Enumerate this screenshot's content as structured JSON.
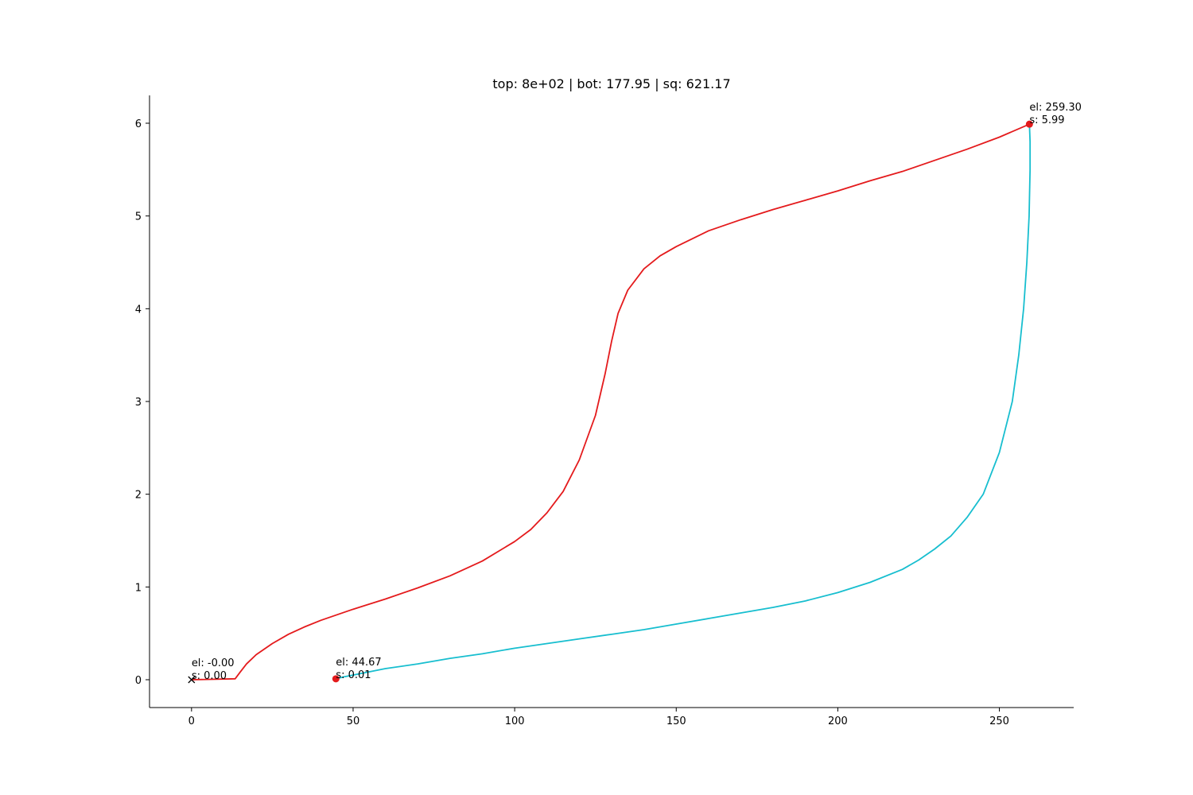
{
  "chart_data": {
    "type": "line",
    "title": "top: 8e+02 | bot: 177.95 | sq: 621.17",
    "xlabel": "",
    "ylabel": "",
    "xlim": [
      -13,
      273
    ],
    "ylim": [
      -0.3,
      6.3
    ],
    "xticks": [
      0,
      50,
      100,
      150,
      200,
      250
    ],
    "yticks": [
      0,
      1,
      2,
      3,
      4,
      5,
      6
    ],
    "grid": false,
    "series": [
      {
        "color": "#e41a1c",
        "points": [
          [
            0,
            0
          ],
          [
            13.5,
            0.01
          ],
          [
            15,
            0.08
          ],
          [
            17,
            0.17
          ],
          [
            20,
            0.27
          ],
          [
            25,
            0.39
          ],
          [
            30,
            0.49
          ],
          [
            35,
            0.57
          ],
          [
            40,
            0.64
          ],
          [
            45,
            0.7
          ],
          [
            50,
            0.76
          ],
          [
            60,
            0.87
          ],
          [
            70,
            0.99
          ],
          [
            80,
            1.12
          ],
          [
            90,
            1.28
          ],
          [
            100,
            1.49
          ],
          [
            105,
            1.62
          ],
          [
            110,
            1.8
          ],
          [
            115,
            2.03
          ],
          [
            120,
            2.37
          ],
          [
            125,
            2.85
          ],
          [
            128,
            3.3
          ],
          [
            130,
            3.65
          ],
          [
            132,
            3.95
          ],
          [
            135,
            4.2
          ],
          [
            140,
            4.43
          ],
          [
            145,
            4.57
          ],
          [
            150,
            4.67
          ],
          [
            160,
            4.84
          ],
          [
            170,
            4.96
          ],
          [
            180,
            5.07
          ],
          [
            190,
            5.17
          ],
          [
            200,
            5.27
          ],
          [
            210,
            5.38
          ],
          [
            220,
            5.48
          ],
          [
            230,
            5.6
          ],
          [
            240,
            5.72
          ],
          [
            250,
            5.85
          ],
          [
            259.3,
            5.99
          ]
        ]
      },
      {
        "color": "#17becf",
        "points": [
          [
            259.3,
            5.99
          ],
          [
            259.5,
            5.8
          ],
          [
            259.5,
            5.5
          ],
          [
            259.2,
            5.0
          ],
          [
            258.5,
            4.5
          ],
          [
            257.5,
            4.0
          ],
          [
            256,
            3.5
          ],
          [
            254,
            3.0
          ],
          [
            250,
            2.45
          ],
          [
            245,
            2.0
          ],
          [
            240,
            1.75
          ],
          [
            235,
            1.55
          ],
          [
            230,
            1.41
          ],
          [
            225,
            1.29
          ],
          [
            220,
            1.19
          ],
          [
            210,
            1.05
          ],
          [
            200,
            0.94
          ],
          [
            190,
            0.85
          ],
          [
            180,
            0.78
          ],
          [
            170,
            0.72
          ],
          [
            160,
            0.66
          ],
          [
            150,
            0.6
          ],
          [
            140,
            0.54
          ],
          [
            130,
            0.49
          ],
          [
            120,
            0.44
          ],
          [
            110,
            0.39
          ],
          [
            100,
            0.34
          ],
          [
            90,
            0.28
          ],
          [
            80,
            0.23
          ],
          [
            70,
            0.17
          ],
          [
            60,
            0.12
          ],
          [
            50,
            0.05
          ],
          [
            47,
            0.03
          ],
          [
            44.67,
            0.01
          ]
        ]
      }
    ],
    "markers": [
      {
        "x": 0,
        "y": 0,
        "shape": "x",
        "color": "#000000"
      },
      {
        "x": 259.3,
        "y": 5.99,
        "shape": "dot",
        "color": "#e41a1c"
      },
      {
        "x": 44.67,
        "y": 0.01,
        "shape": "dot",
        "color": "#e41a1c"
      }
    ],
    "annotations": [
      {
        "x": 0,
        "y": 0,
        "lines": [
          "el: -0.00",
          "s: 0.00"
        ]
      },
      {
        "x": 259.3,
        "y": 5.99,
        "lines": [
          "el: 259.30",
          "s: 5.99"
        ]
      },
      {
        "x": 44.67,
        "y": 0.01,
        "lines": [
          "el: 44.67",
          "s: 0.01"
        ]
      }
    ]
  }
}
